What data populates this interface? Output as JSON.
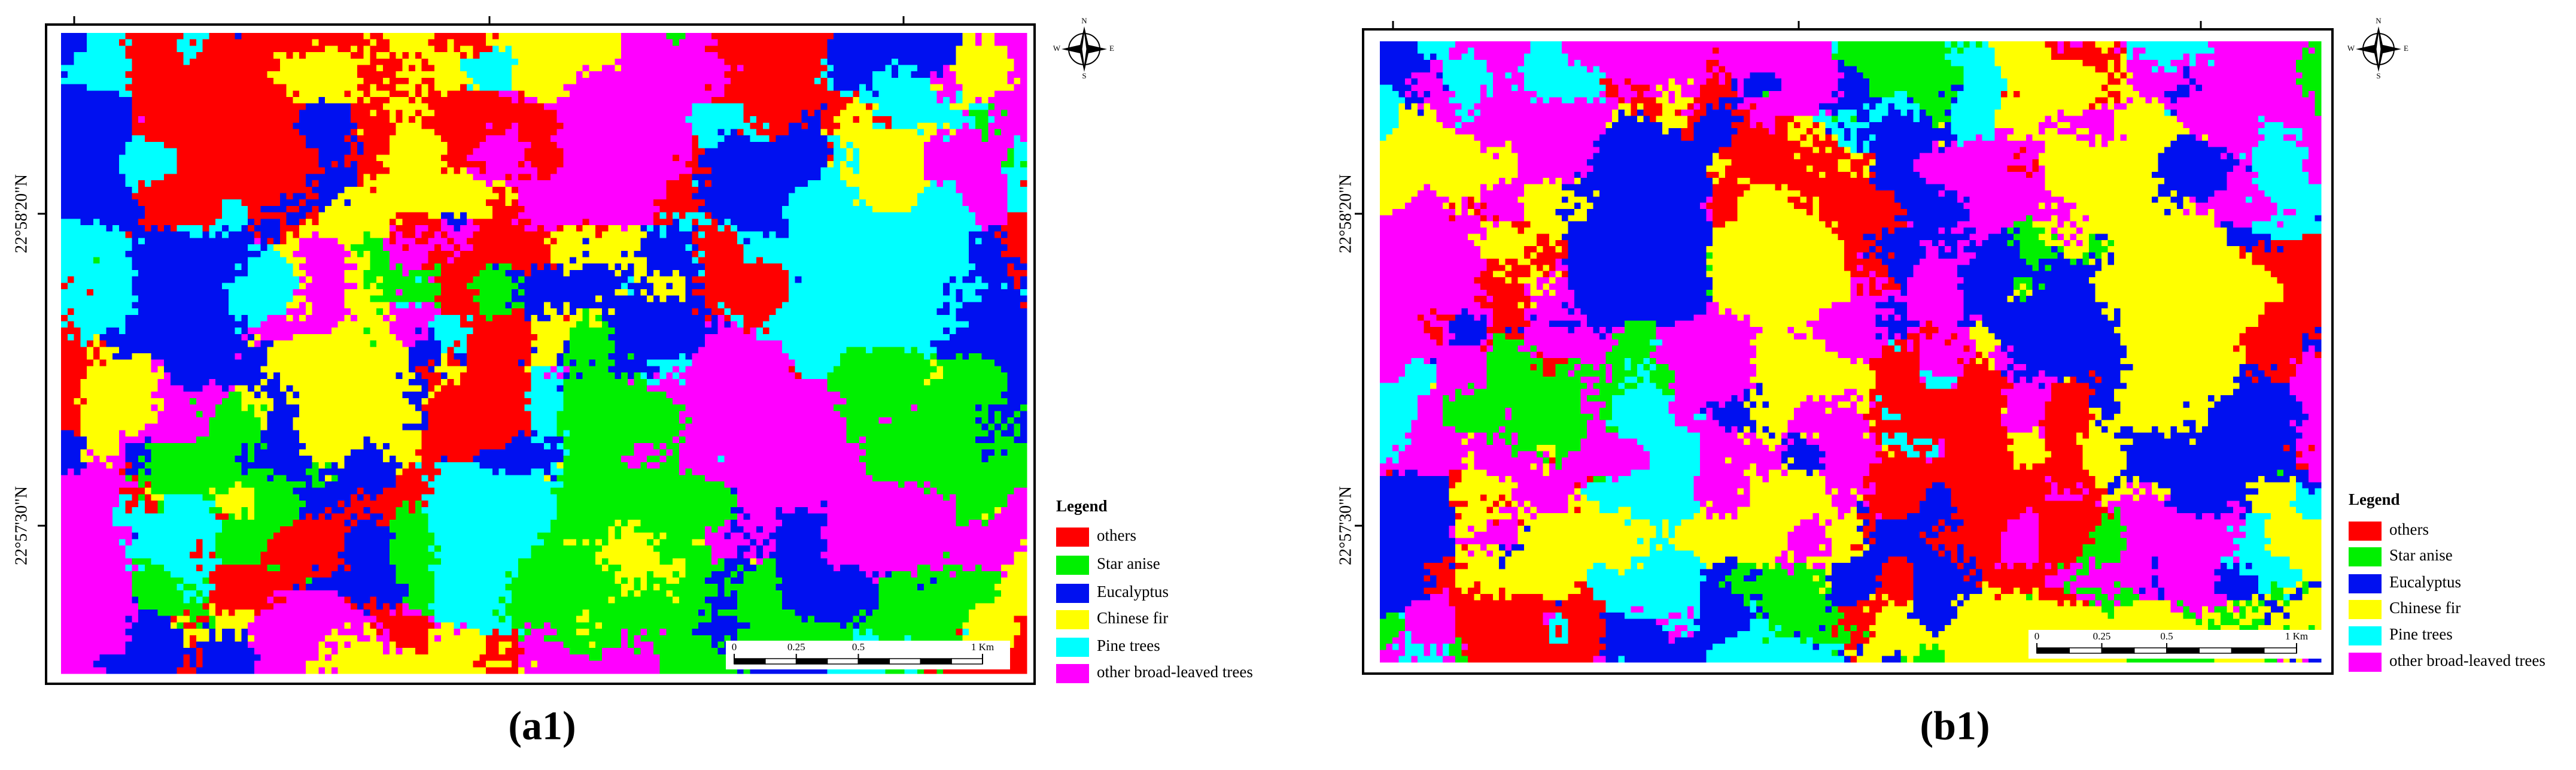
{
  "panels": [
    {
      "caption": "(a1)",
      "lat_labels": [
        "22°58'20\"N",
        "22°57'30\"N"
      ],
      "compass": {
        "north": "N",
        "south": "S",
        "east": "E",
        "west": "W"
      },
      "legend": {
        "title": "Legend",
        "items": [
          {
            "label": "others",
            "color": "#ff0000"
          },
          {
            "label": "Star anise",
            "color": "#00f000"
          },
          {
            "label": "Eucalyptus",
            "color": "#0010f0"
          },
          {
            "label": "Chinese fir",
            "color": "#ffff00"
          },
          {
            "label": "Pine trees",
            "color": "#00ffff"
          },
          {
            "label": "other broad-leaved trees",
            "color": "#ff00ff"
          }
        ]
      },
      "scale_bar": {
        "ticks": [
          0,
          0.25,
          0.5,
          {
            "value": 1,
            "label": "1 Km"
          }
        ]
      }
    },
    {
      "caption": "(b1)",
      "lat_labels": [
        "22°58'20\"N",
        "22°57'30\"N"
      ],
      "compass": {
        "north": "N",
        "south": "S",
        "east": "E",
        "west": "W"
      },
      "legend": {
        "title": "Legend",
        "items": [
          {
            "label": "others",
            "color": "#ff0000"
          },
          {
            "label": "Star anise",
            "color": "#00f000"
          },
          {
            "label": "Eucalyptus",
            "color": "#0010f0"
          },
          {
            "label": "Chinese fir",
            "color": "#ffff00"
          },
          {
            "label": "Pine trees",
            "color": "#00ffff"
          },
          {
            "label": "other broad-leaved trees",
            "color": "#ff00ff"
          }
        ]
      },
      "scale_bar": {
        "ticks": [
          0,
          0.25,
          0.5,
          {
            "value": 1,
            "label": "1 Km"
          }
        ]
      }
    }
  ]
}
